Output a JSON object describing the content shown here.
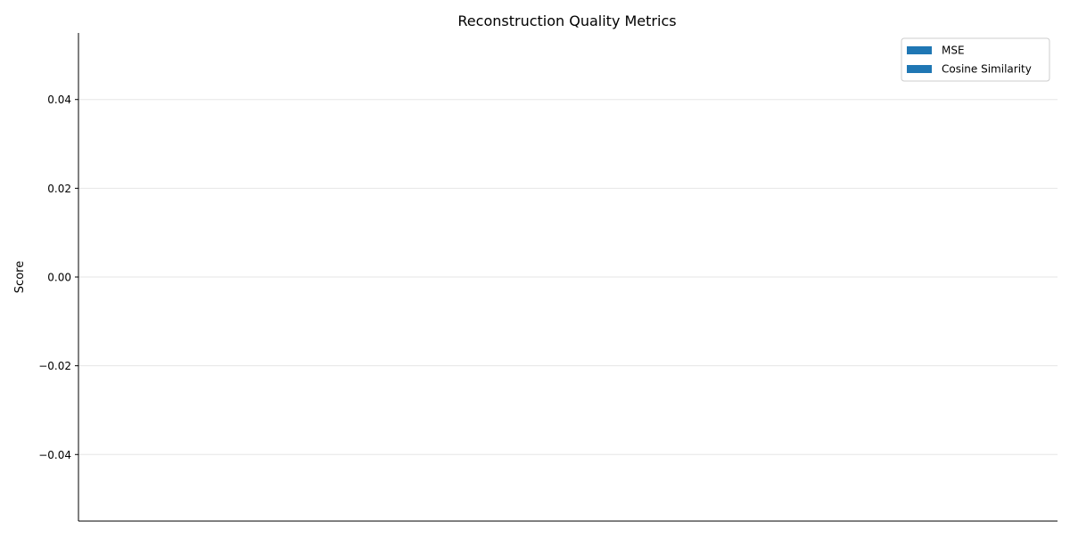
{
  "chart_data": {
    "type": "bar",
    "title": "Reconstruction Quality Metrics",
    "xlabel": "",
    "ylabel": "Score",
    "categories": [],
    "series": [
      {
        "name": "MSE",
        "values": [],
        "color": "#1f77b4"
      },
      {
        "name": "Cosine Similarity",
        "values": [],
        "color": "#1f77b4"
      }
    ],
    "ylim": [
      -0.055,
      0.055
    ],
    "yticks": [
      -0.04,
      -0.02,
      0.0,
      0.02,
      0.04
    ],
    "ytick_labels": [
      "−0.04",
      "−0.02",
      "0.00",
      "0.02",
      "0.04"
    ],
    "grid": "horizontal",
    "legend_position": "top-right"
  }
}
